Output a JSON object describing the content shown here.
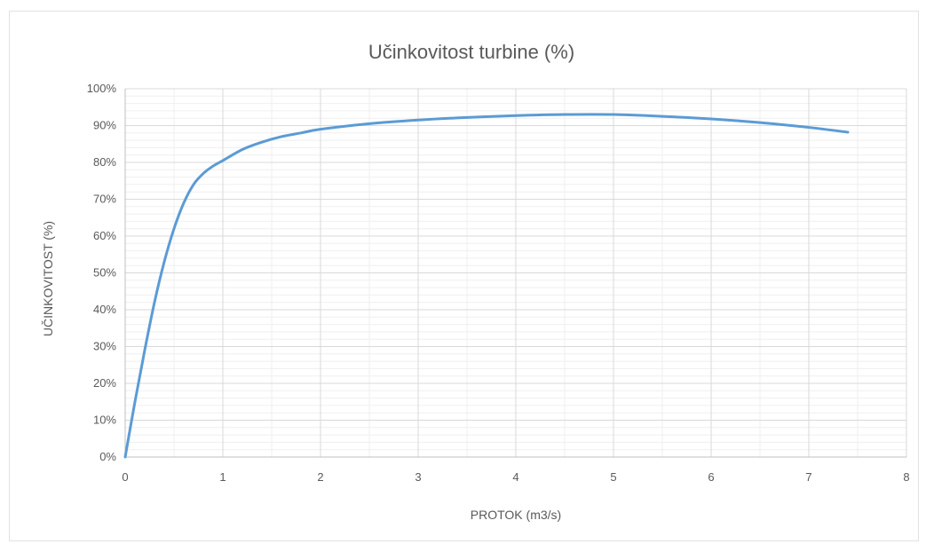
{
  "chart_data": {
    "type": "line",
    "title": "Učinkovitost turbine (%)",
    "xlabel": "PROTOK (m3/s)",
    "ylabel": "UČINKOVITOST (%)",
    "xlim": [
      0,
      8
    ],
    "ylim": [
      0,
      100
    ],
    "x_ticks": [
      "0",
      "1",
      "2",
      "3",
      "4",
      "5",
      "6",
      "7",
      "8"
    ],
    "y_ticks": [
      "0%",
      "10%",
      "20%",
      "30%",
      "40%",
      "50%",
      "60%",
      "70%",
      "80%",
      "90%",
      "100%"
    ],
    "grid": true,
    "legend": "none",
    "series": [
      {
        "color": "#5b9bd5",
        "x": [
          0,
          0.1,
          0.2,
          0.3,
          0.4,
          0.5,
          0.6,
          0.7,
          0.8,
          0.9,
          1.0,
          1.2,
          1.4,
          1.6,
          1.8,
          2.0,
          2.5,
          3.0,
          3.5,
          4.0,
          4.5,
          5.0,
          5.5,
          6.0,
          6.5,
          7.0,
          7.4
        ],
        "y": [
          0,
          15,
          29,
          42,
          53,
          62,
          69,
          74,
          77,
          79,
          80.5,
          83.5,
          85.5,
          87,
          88,
          89,
          90.5,
          91.5,
          92.2,
          92.7,
          93,
          93,
          92.5,
          91.8,
          90.8,
          89.5,
          88.2
        ]
      }
    ]
  }
}
